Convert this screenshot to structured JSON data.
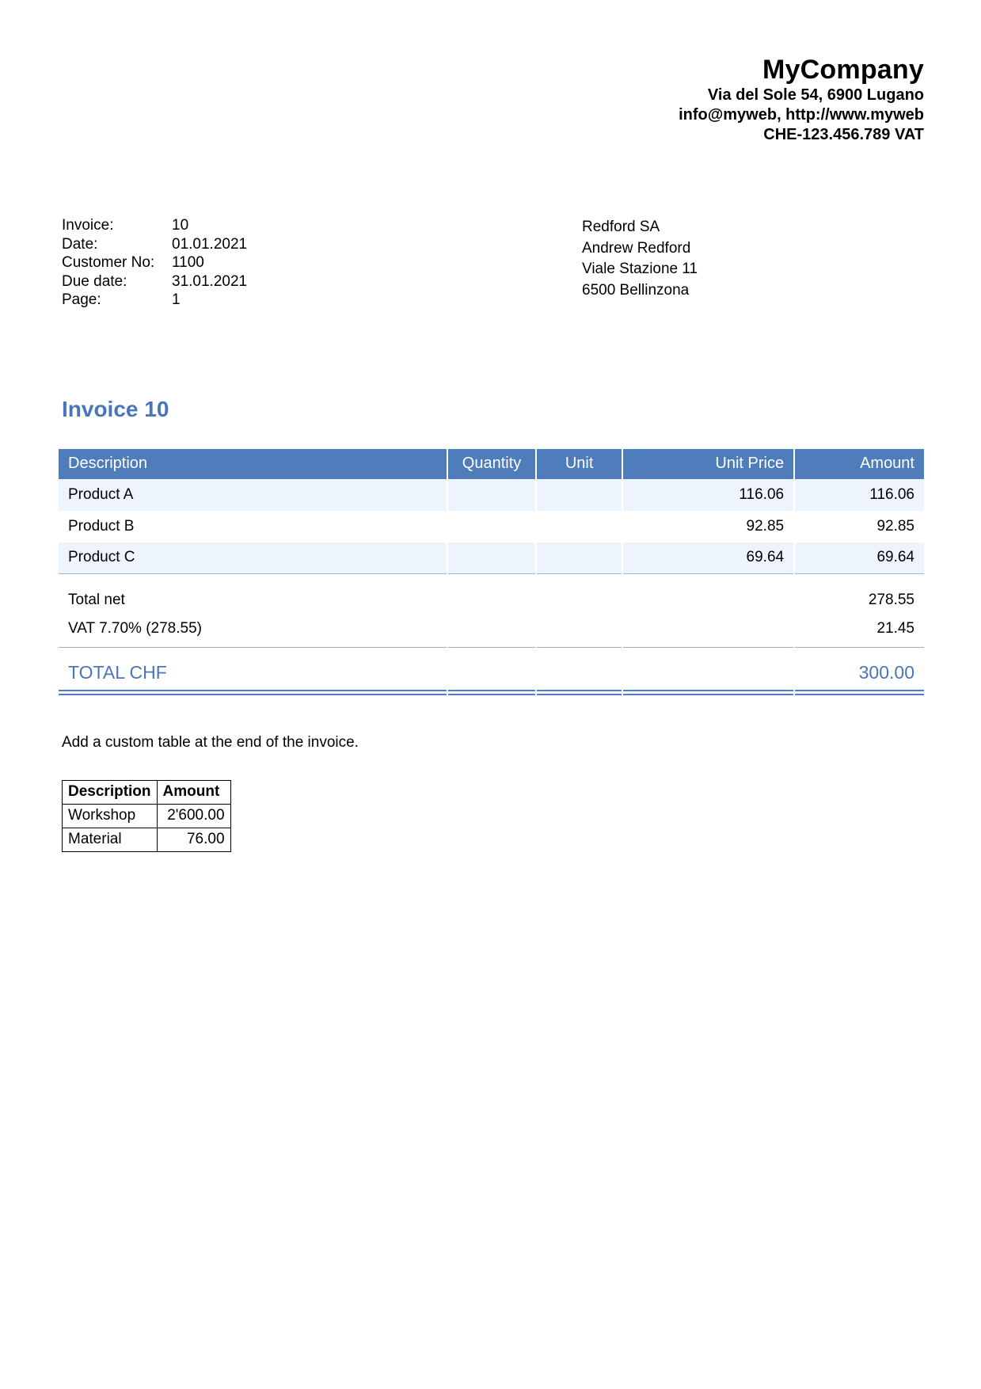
{
  "company": {
    "name": "MyCompany",
    "address": "Via del Sole 54, 6900 Lugano",
    "contact": "info@myweb, http://www.myweb",
    "vat": "CHE-123.456.789 VAT"
  },
  "meta": {
    "rows": [
      {
        "label": "Invoice:",
        "value": "10"
      },
      {
        "label": "Date:",
        "value": "01.01.2021"
      },
      {
        "label": "Customer No:",
        "value": "1100"
      },
      {
        "label": "Due date:",
        "value": "31.01.2021"
      },
      {
        "label": "Page:",
        "value": "1"
      }
    ]
  },
  "customer": {
    "lines": [
      "Redford SA",
      "Andrew Redford",
      "Viale Stazione 11",
      "6500 Bellinzona"
    ]
  },
  "title": "Invoice 10",
  "items_table": {
    "headers": [
      "Description",
      "Quantity",
      "Unit",
      "Unit Price",
      "Amount"
    ],
    "rows": [
      {
        "description": "Product A",
        "quantity": "",
        "unit": "",
        "unit_price": "116.06",
        "amount": "116.06"
      },
      {
        "description": "Product B",
        "quantity": "",
        "unit": "",
        "unit_price": "92.85",
        "amount": "92.85"
      },
      {
        "description": "Product C",
        "quantity": "",
        "unit": "",
        "unit_price": "69.64",
        "amount": "69.64"
      }
    ],
    "totals": [
      {
        "label": "Total net",
        "amount": "278.55"
      },
      {
        "label": "VAT 7.70% (278.55)",
        "amount": "21.45"
      }
    ],
    "grand_total": {
      "label": "TOTAL CHF",
      "amount": "300.00"
    }
  },
  "note": "Add a custom table at the end of the invoice.",
  "custom_table": {
    "headers": [
      "Description",
      "Amount"
    ],
    "rows": [
      {
        "description": "Workshop",
        "amount": "2'600.00"
      },
      {
        "description": "Material",
        "amount": "76.00"
      }
    ]
  },
  "colors": {
    "table_header_bg": "#4f7cba",
    "table_header_text": "#ffffff",
    "accent_blue": "#4a76b9",
    "row_alt_bg": "#eef4fb",
    "thin_line": "#9db0c6"
  }
}
